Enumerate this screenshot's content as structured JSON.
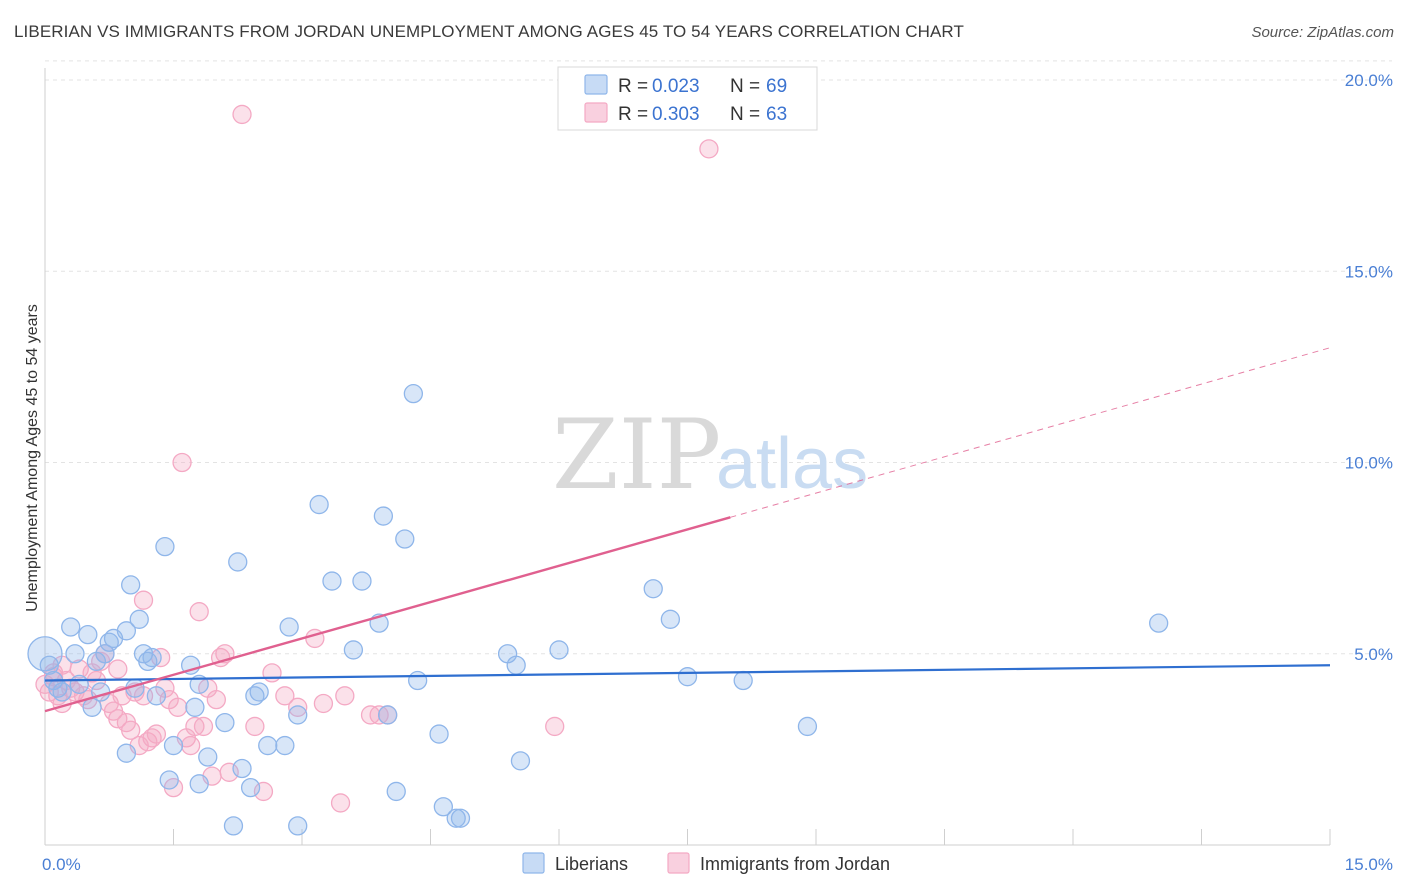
{
  "header": {
    "title": "LIBERIAN VS IMMIGRANTS FROM JORDAN UNEMPLOYMENT AMONG AGES 45 TO 54 YEARS CORRELATION CHART",
    "source": "Source: ZipAtlas.com"
  },
  "watermark": {
    "zip": "ZIP",
    "atlas": "atlas"
  },
  "legend_top": {
    "series1": {
      "r_label": "R =",
      "r_value": "0.023",
      "n_label": "N =",
      "n_value": "69"
    },
    "series2": {
      "r_label": "R =",
      "r_value": "0.303",
      "n_label": "N =",
      "n_value": "63"
    }
  },
  "chart_data": {
    "type": "scatter",
    "title": "LIBERIAN VS IMMIGRANTS FROM JORDAN UNEMPLOYMENT AMONG AGES 45 TO 54 YEARS CORRELATION CHART",
    "xlabel": "",
    "ylabel": "Unemployment Among Ages 45 to 54 years",
    "xlim": [
      0,
      15
    ],
    "ylim": [
      0,
      20.5
    ],
    "x_tick_labels": [
      "0.0%",
      "15.0%"
    ],
    "y_ticks": [
      5,
      10,
      15,
      20
    ],
    "y_tick_labels": [
      "5.0%",
      "10.0%",
      "15.0%",
      "20.0%"
    ],
    "grid": true,
    "legend_position": "top-center",
    "series": [
      {
        "name": "Liberians",
        "color": "#8fb6ea",
        "line_color": "#2f6fd0",
        "trend": {
          "x": [
            0,
            15
          ],
          "y": [
            4.3,
            4.7
          ]
        },
        "points": [
          [
            0.0,
            5.0
          ],
          [
            0.05,
            4.7
          ],
          [
            0.1,
            4.3
          ],
          [
            0.2,
            4.0
          ],
          [
            0.3,
            5.7
          ],
          [
            0.35,
            5.0
          ],
          [
            0.5,
            5.5
          ],
          [
            0.6,
            4.8
          ],
          [
            0.65,
            4.0
          ],
          [
            0.7,
            5.0
          ],
          [
            0.75,
            5.3
          ],
          [
            0.8,
            5.4
          ],
          [
            0.55,
            3.6
          ],
          [
            0.95,
            5.6
          ],
          [
            1.0,
            6.8
          ],
          [
            0.95,
            2.4
          ],
          [
            1.05,
            4.1
          ],
          [
            1.1,
            5.9
          ],
          [
            1.15,
            5.0
          ],
          [
            1.2,
            4.8
          ],
          [
            1.25,
            4.9
          ],
          [
            1.3,
            3.9
          ],
          [
            1.4,
            7.8
          ],
          [
            1.5,
            2.6
          ],
          [
            1.45,
            1.7
          ],
          [
            1.7,
            4.7
          ],
          [
            1.75,
            3.6
          ],
          [
            1.8,
            4.2
          ],
          [
            1.9,
            2.3
          ],
          [
            2.1,
            3.2
          ],
          [
            2.2,
            0.5
          ],
          [
            2.25,
            7.4
          ],
          [
            2.3,
            2.0
          ],
          [
            2.4,
            1.5
          ],
          [
            2.45,
            3.9
          ],
          [
            2.5,
            4.0
          ],
          [
            2.6,
            2.6
          ],
          [
            2.8,
            2.6
          ],
          [
            2.85,
            5.7
          ],
          [
            2.95,
            3.4
          ],
          [
            2.95,
            0.5
          ],
          [
            3.2,
            8.9
          ],
          [
            3.35,
            6.9
          ],
          [
            3.6,
            5.1
          ],
          [
            3.7,
            6.9
          ],
          [
            3.9,
            5.8
          ],
          [
            3.95,
            8.6
          ],
          [
            4.0,
            3.4
          ],
          [
            4.1,
            1.4
          ],
          [
            4.2,
            8.0
          ],
          [
            4.3,
            11.8
          ],
          [
            4.35,
            4.3
          ],
          [
            4.6,
            2.9
          ],
          [
            4.65,
            1.0
          ],
          [
            4.8,
            0.7
          ],
          [
            4.85,
            0.7
          ],
          [
            5.4,
            5.0
          ],
          [
            5.5,
            4.7
          ],
          [
            5.55,
            2.2
          ],
          [
            6.0,
            5.1
          ],
          [
            7.1,
            6.7
          ],
          [
            7.3,
            5.9
          ],
          [
            7.5,
            4.4
          ],
          [
            8.15,
            4.3
          ],
          [
            8.9,
            3.1
          ],
          [
            13.0,
            5.8
          ],
          [
            1.8,
            1.6
          ],
          [
            0.15,
            4.1
          ],
          [
            0.4,
            4.2
          ]
        ]
      },
      {
        "name": "Immigrants from Jordan",
        "color": "#f4a9c4",
        "line_color": "#e0608f",
        "trend": {
          "x": [
            0,
            15
          ],
          "y": [
            3.5,
            13.0
          ],
          "solid_until": 8.0
        },
        "points": [
          [
            0.0,
            4.2
          ],
          [
            0.05,
            4.0
          ],
          [
            0.1,
            4.5
          ],
          [
            0.15,
            3.9
          ],
          [
            0.2,
            4.7
          ],
          [
            0.25,
            4.3
          ],
          [
            0.3,
            4.1
          ],
          [
            0.35,
            4.0
          ],
          [
            0.4,
            4.6
          ],
          [
            0.45,
            3.9
          ],
          [
            0.5,
            3.8
          ],
          [
            0.6,
            4.3
          ],
          [
            0.65,
            4.8
          ],
          [
            0.7,
            5.0
          ],
          [
            0.75,
            3.7
          ],
          [
            0.8,
            3.5
          ],
          [
            0.85,
            4.6
          ],
          [
            0.9,
            3.9
          ],
          [
            0.95,
            3.2
          ],
          [
            1.0,
            3.0
          ],
          [
            1.05,
            4.0
          ],
          [
            1.1,
            2.6
          ],
          [
            1.15,
            6.4
          ],
          [
            1.2,
            2.7
          ],
          [
            1.3,
            2.9
          ],
          [
            1.35,
            4.9
          ],
          [
            1.4,
            4.1
          ],
          [
            1.45,
            3.8
          ],
          [
            1.5,
            1.5
          ],
          [
            1.55,
            3.6
          ],
          [
            1.6,
            10.0
          ],
          [
            1.65,
            2.8
          ],
          [
            1.7,
            2.6
          ],
          [
            1.75,
            3.1
          ],
          [
            1.8,
            6.1
          ],
          [
            1.85,
            3.1
          ],
          [
            1.9,
            4.1
          ],
          [
            1.95,
            1.8
          ],
          [
            2.0,
            3.8
          ],
          [
            2.05,
            4.9
          ],
          [
            2.1,
            5.0
          ],
          [
            2.3,
            19.1
          ],
          [
            2.45,
            3.1
          ],
          [
            2.55,
            1.4
          ],
          [
            2.65,
            4.5
          ],
          [
            2.8,
            3.9
          ],
          [
            2.95,
            3.6
          ],
          [
            3.15,
            5.4
          ],
          [
            3.25,
            3.7
          ],
          [
            3.45,
            1.1
          ],
          [
            3.5,
            3.9
          ],
          [
            3.8,
            3.4
          ],
          [
            3.9,
            3.4
          ],
          [
            4.0,
            3.4
          ],
          [
            5.95,
            3.1
          ],
          [
            7.75,
            18.2
          ],
          [
            0.55,
            4.5
          ],
          [
            0.2,
            3.7
          ],
          [
            1.25,
            2.8
          ],
          [
            2.15,
            1.9
          ],
          [
            0.1,
            4.4
          ],
          [
            0.85,
            3.3
          ],
          [
            1.15,
            3.9
          ]
        ]
      }
    ]
  },
  "bottom_legend": {
    "series1": "Liberians",
    "series2": "Immigrants from Jordan"
  }
}
